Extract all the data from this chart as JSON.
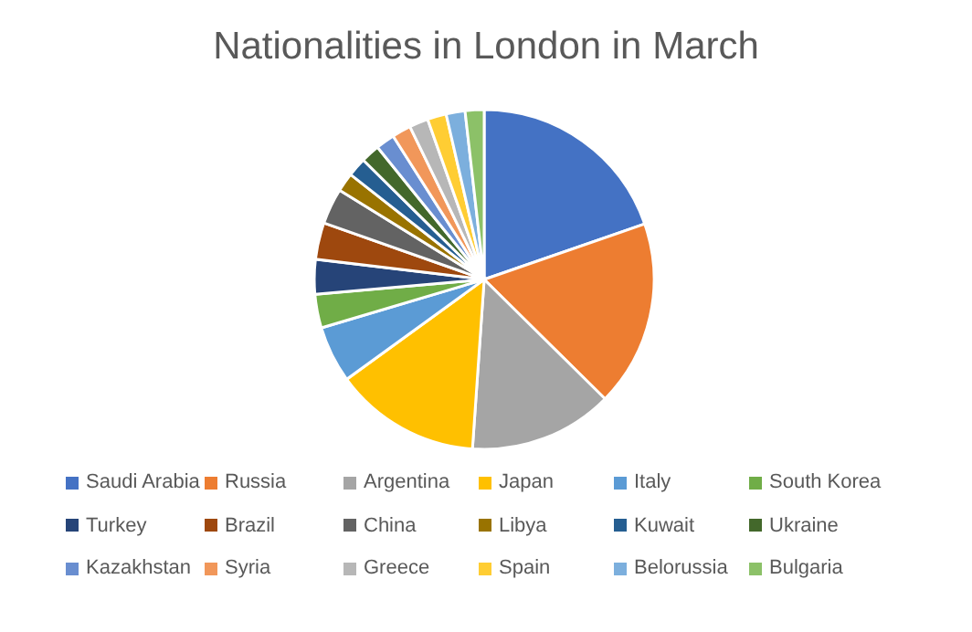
{
  "chart_data": {
    "type": "pie",
    "title": "Nationalities in London in March",
    "categories": [
      "Saudi Arabia",
      "Russia",
      "Argentina",
      "Japan",
      "Italy",
      "South Korea",
      "Turkey",
      "Brazil",
      "China",
      "Libya",
      "Kuwait",
      "Ukraine",
      "Kazakhstan",
      "Syria",
      "Greece",
      "Spain",
      "Belorussia",
      "Bulgaria"
    ],
    "values": [
      19.7,
      17.7,
      13.7,
      13.9,
      5.4,
      3.2,
      3.3,
      3.5,
      3.4,
      1.8,
      1.8,
      1.8,
      1.8,
      1.8,
      1.8,
      1.8,
      1.8,
      1.8
    ],
    "colors": [
      "#4472c4",
      "#ed7d31",
      "#a5a5a5",
      "#ffc000",
      "#5b9bd5",
      "#70ad47",
      "#264478",
      "#9e480e",
      "#636363",
      "#997300",
      "#255e91",
      "#43682b",
      "#698ed0",
      "#f1975a",
      "#b7b7b7",
      "#ffcd33",
      "#7cafdd",
      "#8cc168"
    ],
    "legend": "bottom"
  }
}
